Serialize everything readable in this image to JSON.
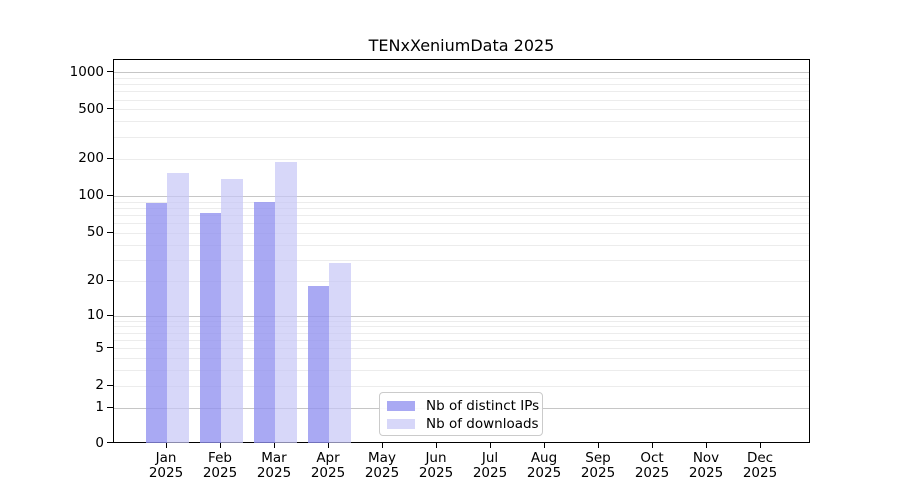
{
  "title": "TENxXeniumData 2025",
  "legend": {
    "items": [
      {
        "label": "Nb of distinct IPs",
        "color": "#a9a9f3",
        "fill": "rgba(145,145,240,0.78)"
      },
      {
        "label": "Nb of downloads",
        "color": "#d7d7f9",
        "fill": "rgba(198,198,246,0.70)"
      }
    ]
  },
  "axes": {
    "y_ticks": [
      0,
      1,
      2,
      5,
      10,
      20,
      50,
      100,
      200,
      500,
      1000
    ],
    "x_tick_months": [
      "Jan",
      "Feb",
      "Mar",
      "Apr",
      "May",
      "Jun",
      "Jul",
      "Aug",
      "Sep",
      "Oct",
      "Nov",
      "Dec"
    ],
    "x_tick_year": "2025"
  },
  "chart_data": {
    "type": "bar",
    "title": "TENxXeniumData 2025",
    "categories": [
      "Jan 2025",
      "Feb 2025",
      "Mar 2025",
      "Apr 2025",
      "May 2025",
      "Jun 2025",
      "Jul 2025",
      "Aug 2025",
      "Sep 2025",
      "Oct 2025",
      "Nov 2025",
      "Dec 2025"
    ],
    "series": [
      {
        "name": "Nb of distinct IPs",
        "values": [
          88,
          73,
          90,
          18,
          0,
          0,
          0,
          0,
          0,
          0,
          0,
          0
        ]
      },
      {
        "name": "Nb of downloads",
        "values": [
          154,
          136,
          190,
          28,
          0,
          0,
          0,
          0,
          0,
          0,
          0,
          0
        ]
      }
    ],
    "xlabel": "",
    "ylabel": "",
    "yscale": "log1p",
    "yticks": [
      0,
      1,
      2,
      5,
      10,
      20,
      50,
      100,
      200,
      500,
      1000
    ],
    "ylim": [
      0,
      1250
    ],
    "grid": "horizontal major+minor",
    "legend_position": "inside lower-center-left"
  }
}
